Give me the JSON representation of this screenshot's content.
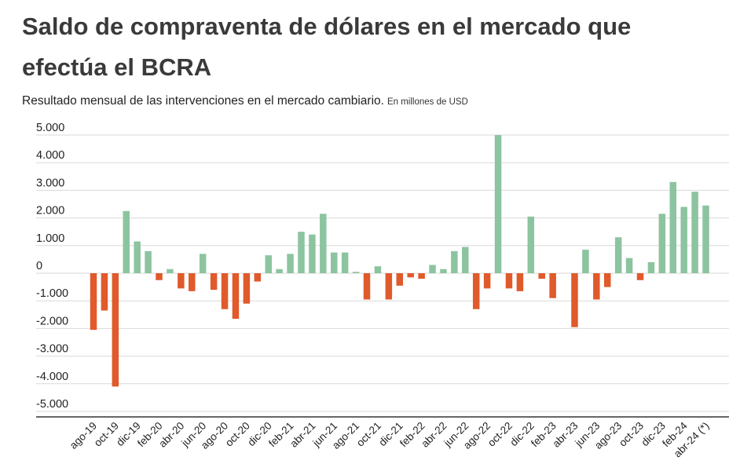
{
  "header": {
    "title": "Saldo de compraventa de dólares en el mercado que efectúa el BCRA",
    "subtitle": "Resultado  mensual de las intervenciones en el mercado cambiario.",
    "unit": "En millones de USD"
  },
  "colors": {
    "positive": "#8cc4a0",
    "negative": "#e05a2b",
    "grid": "#d9d9d9",
    "axis": "#333333"
  },
  "chart_data": {
    "type": "bar",
    "title": "Saldo de compraventa de dólares en el mercado que efectúa el BCRA",
    "subtitle": "Resultado  mensual de las intervenciones en el mercado cambiario.",
    "ylabel": "En millones de USD",
    "ylim": [
      -5000,
      5000
    ],
    "yticks": [
      "5.000",
      "4.000",
      "3.000",
      "2.000",
      "1.000",
      "0",
      "-1.000",
      "-2.000",
      "-3.000",
      "-4.000",
      "-5.000"
    ],
    "categories": [
      "ago-19",
      "sep-19",
      "oct-19",
      "nov-19",
      "dic-19",
      "ene-20",
      "feb-20",
      "mar-20",
      "abr-20",
      "may-20",
      "jun-20",
      "jul-20",
      "ago-20",
      "sep-20",
      "oct-20",
      "nov-20",
      "dic-20",
      "ene-21",
      "feb-21",
      "mar-21",
      "abr-21",
      "may-21",
      "jun-21",
      "jul-21",
      "ago-21",
      "sep-21",
      "oct-21",
      "nov-21",
      "dic-21",
      "ene-22",
      "feb-22",
      "mar-22",
      "abr-22",
      "may-22",
      "jun-22",
      "jul-22",
      "ago-22",
      "sep-22",
      "oct-22",
      "nov-22",
      "dic-22",
      "ene-23",
      "feb-23",
      "mar-23",
      "abr-23",
      "may-23",
      "jun-23",
      "jul-23",
      "ago-23",
      "sep-23",
      "oct-23",
      "nov-23",
      "dic-23",
      "ene-24",
      "feb-24",
      "mar-24",
      "abr-24 (*)"
    ],
    "tick_labels": [
      "ago-19",
      "oct-19",
      "dic-19",
      "feb-20",
      "abr-20",
      "jun-20",
      "ago-20",
      "oct-20",
      "dic-20",
      "feb-21",
      "abr-21",
      "jun-21",
      "ago-21",
      "oct-21",
      "dic-21",
      "feb-22",
      "abr-22",
      "jun-22",
      "ago-22",
      "oct-22",
      "dic-22",
      "feb-23",
      "abr-23",
      "jun-23",
      "ago-23",
      "oct-23",
      "dic-23",
      "feb-24",
      "abr-24 (*)"
    ],
    "values": [
      -2050,
      -1350,
      -4100,
      2250,
      1150,
      800,
      -250,
      150,
      -550,
      -650,
      700,
      -600,
      -1300,
      -1650,
      -1100,
      -300,
      650,
      150,
      700,
      1500,
      1400,
      2150,
      750,
      750,
      50,
      -950,
      250,
      -950,
      -450,
      -150,
      -200,
      300,
      150,
      800,
      950,
      -1300,
      -550,
      5000,
      -550,
      -650,
      2050,
      -200,
      -900,
      0,
      -1950,
      850,
      -950,
      -500,
      1300,
      550,
      -250,
      400,
      2150,
      3300,
      2400,
      2950,
      2450
    ],
    "grid": true,
    "legend": "none"
  }
}
